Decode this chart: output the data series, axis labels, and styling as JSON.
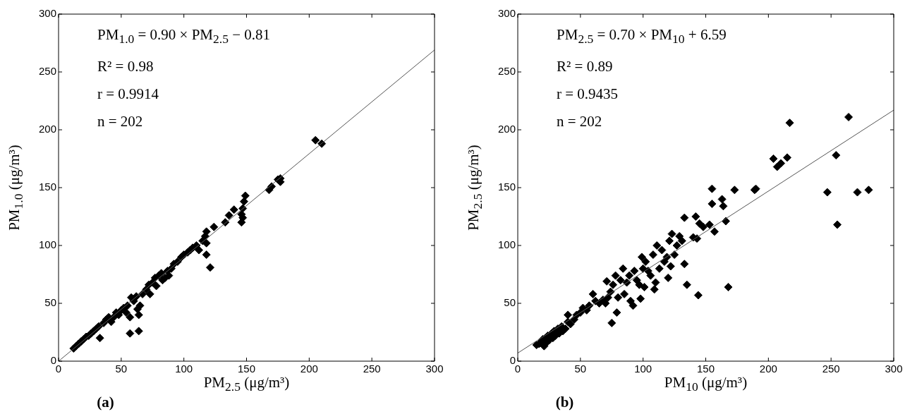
{
  "chart_data": [
    {
      "type": "scatter",
      "xlabel": "PM$_{2.5}$ (μg/m³)",
      "ylabel": "PM$_{1.0}$ (μg/m³)",
      "xlim": [
        0,
        300
      ],
      "ylim": [
        0,
        300
      ],
      "xticks": [
        0,
        50,
        100,
        150,
        200,
        250,
        300
      ],
      "yticks": [
        0,
        50,
        100,
        150,
        200,
        250,
        300
      ],
      "annotations": [
        "PM$_{1.0}$ = 0.90 × PM$_{2.5}$ − 0.81",
        "R² = 0.98",
        "r = 0.9914",
        "n = 202",
        "(a)"
      ],
      "series": [
        {
          "color": "#000000",
          "marker": "diamond",
          "x": [
            12,
            14,
            16,
            18,
            20,
            22,
            24,
            26,
            28,
            30,
            32,
            33,
            36,
            38,
            40,
            42,
            44,
            46,
            48,
            50,
            52,
            54,
            55,
            57,
            57,
            58,
            60,
            62,
            63,
            64,
            64,
            65,
            67,
            70,
            72,
            73,
            75,
            77,
            78,
            80,
            82,
            83,
            85,
            87,
            88,
            90,
            92,
            95,
            98,
            100,
            103,
            105,
            107,
            110,
            112,
            115,
            117,
            118,
            118,
            121,
            118,
            124,
            133,
            136,
            140,
            146,
            147,
            147,
            148,
            149,
            146,
            168,
            170,
            175,
            177,
            177,
            205,
            210
          ],
          "values": [
            11,
            13,
            15,
            17,
            19,
            21,
            22,
            24,
            26,
            28,
            30,
            20,
            33,
            36,
            38,
            34,
            38,
            42,
            40,
            44,
            46,
            42,
            48,
            38,
            24,
            55,
            52,
            56,
            45,
            26,
            40,
            48,
            58,
            62,
            66,
            58,
            68,
            72,
            65,
            74,
            76,
            70,
            72,
            78,
            74,
            80,
            84,
            86,
            90,
            92,
            94,
            96,
            98,
            100,
            96,
            104,
            108,
            112,
            92,
            81,
            102,
            116,
            120,
            126,
            131,
            120,
            124,
            132,
            138,
            143,
            127,
            148,
            151,
            157,
            155,
            158,
            191,
            188
          ]
        },
        {
          "type": "line",
          "color": "#555555",
          "marker": "none",
          "x": [
            0,
            300
          ],
          "values": [
            0,
            269
          ]
        }
      ]
    },
    {
      "type": "scatter",
      "xlabel": "PM$_{10}$ (μg/m³)",
      "ylabel": "PM$_{2.5}$ (μg/m³)",
      "xlim": [
        0,
        300
      ],
      "ylim": [
        0,
        300
      ],
      "xticks": [
        0,
        50,
        100,
        150,
        200,
        250,
        300
      ],
      "yticks": [
        0,
        50,
        100,
        150,
        200,
        250,
        300
      ],
      "annotations": [
        "PM$_{2.5}$ = 0.70 × PM$_{10}$ + 6.59",
        "R² = 0.89",
        "r = 0.9435",
        "n = 202",
        "(b)"
      ],
      "series": [
        {
          "color": "#000000",
          "marker": "diamond",
          "x": [
            15,
            17,
            19,
            20,
            21,
            22,
            23,
            24,
            25,
            27,
            28,
            29,
            30,
            32,
            33,
            35,
            36,
            38,
            40,
            40,
            42,
            45,
            47,
            50,
            52,
            55,
            57,
            60,
            62,
            65,
            68,
            70,
            71,
            72,
            74,
            75,
            76,
            78,
            79,
            80,
            82,
            84,
            85,
            87,
            89,
            90,
            92,
            93,
            95,
            97,
            98,
            99,
            100,
            101,
            102,
            104,
            106,
            108,
            109,
            110,
            111,
            113,
            115,
            117,
            119,
            120,
            121,
            122,
            123,
            125,
            127,
            129,
            131,
            133,
            133,
            135,
            140,
            142,
            143,
            144,
            145,
            148,
            153,
            155,
            155,
            157,
            163,
            164,
            166,
            168,
            173,
            189,
            190,
            204,
            207,
            210,
            215,
            217,
            247,
            254,
            255,
            264,
            271,
            280
          ],
          "values": [
            14,
            15,
            17,
            19,
            13,
            20,
            16,
            22,
            18,
            24,
            20,
            26,
            22,
            28,
            24,
            30,
            26,
            28,
            34,
            40,
            32,
            36,
            40,
            42,
            46,
            44,
            48,
            58,
            52,
            50,
            53,
            50,
            69,
            55,
            60,
            33,
            66,
            74,
            42,
            55,
            70,
            80,
            58,
            68,
            74,
            52,
            48,
            78,
            70,
            66,
            54,
            90,
            80,
            64,
            86,
            78,
            74,
            92,
            62,
            68,
            100,
            80,
            96,
            86,
            90,
            72,
            104,
            82,
            110,
            92,
            100,
            108,
            104,
            84,
            124,
            66,
            107,
            125,
            106,
            57,
            119,
            116,
            118,
            136,
            149,
            112,
            140,
            134,
            121,
            64,
            148,
            148,
            149,
            175,
            168,
            171,
            176,
            206,
            146,
            178,
            118,
            211,
            146,
            148
          ]
        },
        {
          "type": "line",
          "color": "#555555",
          "marker": "none",
          "x": [
            0,
            300
          ],
          "values": [
            7,
            217
          ]
        }
      ]
    }
  ]
}
